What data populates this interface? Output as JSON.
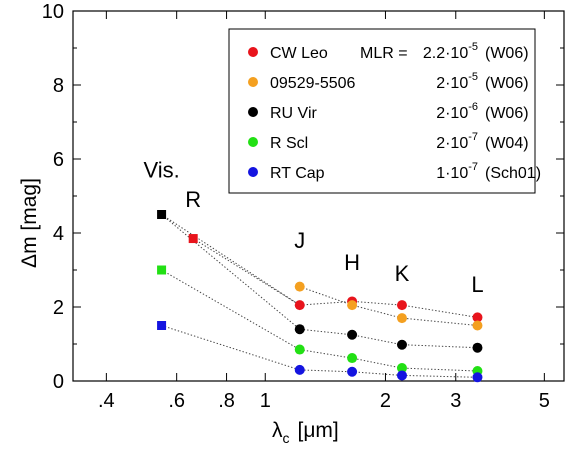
{
  "chart_data": {
    "type": "scatter",
    "xscale": "log",
    "xlim": [
      0.33,
      5.6
    ],
    "ylim": [
      0,
      10
    ],
    "grid": false,
    "xlabel_main": "λ",
    "xlabel_sub": "c",
    "xlabel_unit": "[μm]",
    "ylabel": "Δm  [mag]",
    "xticks": [
      {
        "value": 0.4,
        "label": ".4"
      },
      {
        "value": 0.6,
        "label": ".6"
      },
      {
        "value": 0.8,
        "label": ".8"
      },
      {
        "value": 1.0,
        "label": "1"
      },
      {
        "value": 2.0,
        "label": "2"
      },
      {
        "value": 3.0,
        "label": "3"
      },
      {
        "value": 5.0,
        "label": "5"
      }
    ],
    "yticks": [
      0,
      2,
      4,
      6,
      8,
      10
    ],
    "band_labels": [
      {
        "text": "Vis.",
        "x": 0.55,
        "y": 5.5
      },
      {
        "text": "R",
        "x": 0.66,
        "y": 4.7
      },
      {
        "text": "J",
        "x": 1.22,
        "y": 3.6
      },
      {
        "text": "H",
        "x": 1.65,
        "y": 3.0
      },
      {
        "text": "K",
        "x": 2.2,
        "y": 2.7
      },
      {
        "text": "L",
        "x": 3.4,
        "y": 2.4
      }
    ],
    "legend": {
      "placement": "top-right",
      "header_prefix": "MLR = "
    },
    "series": [
      {
        "name": "CW Leo",
        "color": "#e8141c",
        "mlr_mant": "2.2·10",
        "mlr_exp": "-5",
        "ref": "(W06)",
        "show_prefix": true,
        "x": [
          0.66,
          1.22,
          1.65,
          2.2,
          3.4
        ],
        "y": [
          3.85,
          2.05,
          2.15,
          2.05,
          1.72
        ],
        "markers": [
          "square",
          "circle",
          "circle",
          "circle",
          "circle"
        ]
      },
      {
        "name": "09529-5506",
        "color": "#f4a020",
        "mlr_mant": "2·10",
        "mlr_exp": "-5",
        "ref": "(W06)",
        "show_prefix": false,
        "x": [
          1.22,
          1.65,
          2.2,
          3.4
        ],
        "y": [
          2.55,
          2.05,
          1.7,
          1.5
        ],
        "markers": [
          "circle",
          "circle",
          "circle",
          "circle"
        ]
      },
      {
        "name": "RU Vir",
        "color": "#000000",
        "mlr_mant": "2·10",
        "mlr_exp": "-6",
        "ref": "(W06)",
        "show_prefix": false,
        "x": [
          0.55,
          1.22,
          1.65,
          2.2,
          3.4
        ],
        "y": [
          4.5,
          1.4,
          1.25,
          0.98,
          0.9
        ],
        "markers": [
          "square",
          "circle",
          "circle",
          "circle",
          "circle"
        ]
      },
      {
        "name": "R Scl",
        "color": "#22e014",
        "mlr_mant": "2·10",
        "mlr_exp": "-7",
        "ref": "(W04)",
        "show_prefix": false,
        "x": [
          0.55,
          1.22,
          1.65,
          2.2,
          3.4
        ],
        "y": [
          3.0,
          0.85,
          0.62,
          0.35,
          0.27
        ],
        "markers": [
          "square",
          "circle",
          "circle",
          "circle",
          "circle"
        ]
      },
      {
        "name": "RT Cap",
        "color": "#1414e0",
        "mlr_mant": "1·10",
        "mlr_exp": "-7",
        "ref": "(Sch01)",
        "show_prefix": false,
        "x": [
          0.55,
          1.22,
          1.65,
          2.2,
          3.4
        ],
        "y": [
          1.5,
          0.3,
          0.25,
          0.15,
          0.1
        ],
        "markers": [
          "square",
          "circle",
          "circle",
          "circle",
          "circle"
        ]
      }
    ],
    "extra_lines": [
      {
        "from": {
          "x": 0.55,
          "y": 4.5
        },
        "to": {
          "x": 1.22,
          "y": 2.05
        }
      }
    ]
  }
}
